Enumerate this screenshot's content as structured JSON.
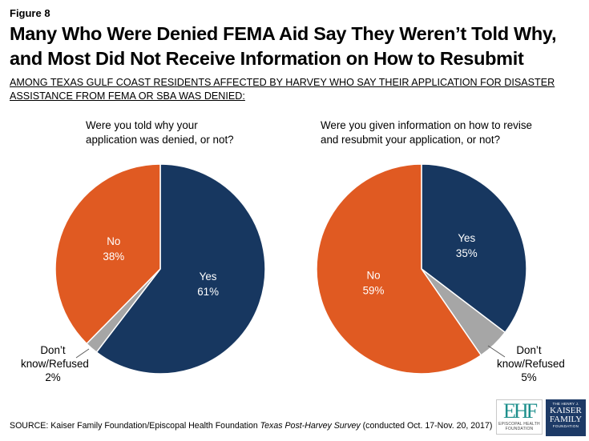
{
  "figure_label": "Figure 8",
  "title": "Many Who Were Denied FEMA Aid Say They Weren’t Told Why, and Most Did Not Receive Information on How to Resubmit",
  "subtitle": "AMONG TEXAS GULF COAST RESIDENTS AFFECTED BY HARVEY WHO SAY THEIR APPLICATION FOR DISASTER ASSISTANCE FROM FEMA OR SBA WAS DENIED:",
  "colors": {
    "yes": "#173760",
    "no": "#e05a22",
    "dk": "#a6a6a6"
  },
  "chart_data": [
    {
      "type": "pie",
      "title": "Were you told why your application was denied, or not?",
      "slices": [
        {
          "label": "Yes",
          "value": 61,
          "value_label": "61%",
          "color": "#173760"
        },
        {
          "label": "Don’t know/Refused",
          "value": 2,
          "value_label": "2%",
          "color": "#a6a6a6"
        },
        {
          "label": "No",
          "value": 38,
          "value_label": "38%",
          "color": "#e05a22"
        }
      ]
    },
    {
      "type": "pie",
      "title": "Were you given information on how to revise and resubmit your application, or not?",
      "slices": [
        {
          "label": "Yes",
          "value": 35,
          "value_label": "35%",
          "color": "#173760"
        },
        {
          "label": "Don’t know/Refused",
          "value": 5,
          "value_label": "5%",
          "color": "#a6a6a6"
        },
        {
          "label": "No",
          "value": 59,
          "value_label": "59%",
          "color": "#e05a22"
        }
      ]
    }
  ],
  "source": {
    "prefix": "SOURCE: Kaiser Family Foundation/Episcopal Health Foundation ",
    "italic": "Texas Post-Harvey Survey",
    "suffix": " (conducted Oct. 17-Nov. 20, 2017)"
  },
  "logos": {
    "ehf_mark": "EHF",
    "ehf_caption_1": "EPISCOPAL HEALTH",
    "ehf_caption_2": "FOUNDATION",
    "kff_top": "THE HENRY J.",
    "kff_name_1": "KAISER",
    "kff_name_2": "FAMILY",
    "kff_bottom": "FOUNDATION"
  }
}
